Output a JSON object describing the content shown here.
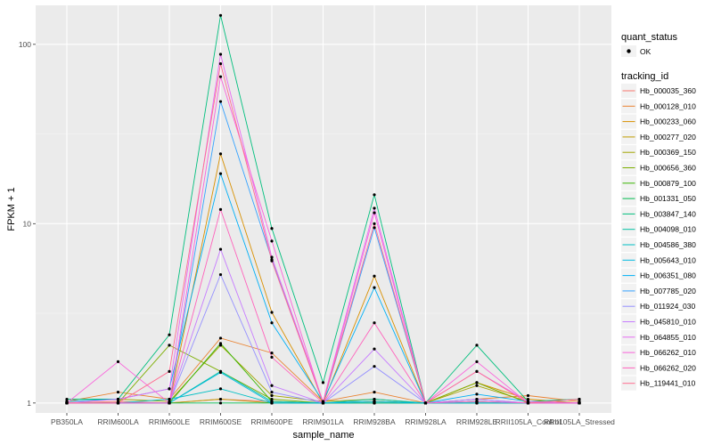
{
  "chart_data": {
    "type": "line",
    "xlabel": "sample_name",
    "ylabel": "FPKM + 1",
    "y_scale": "log10",
    "ylim": [
      0.88,
      165
    ],
    "y_ticks": [
      1,
      10,
      100
    ],
    "y_tick_labels": [
      "1",
      "10",
      "100"
    ],
    "grid": true,
    "legend_position": "right",
    "categories": [
      "PB350LA",
      "RRIM600LA",
      "RRIM600LE",
      "RRIM600SE",
      "RRIM600PE",
      "RRIM901LA",
      "RRIM928BA",
      "RRIM928LA",
      "RRIM928LE",
      "RRII105LA_Control",
      "RRII105LA_Stressed"
    ],
    "shape_legend": {
      "title": "quant_status",
      "entries": [
        "OK"
      ]
    },
    "color_legend_title": "tracking_id",
    "series": [
      {
        "name": "Hb_000035_360",
        "color": "#F8766D",
        "values": [
          1.0,
          1.02,
          1.0,
          1.05,
          1.02,
          1.0,
          1.02,
          1.0,
          1.02,
          1.0,
          1.0
        ]
      },
      {
        "name": "Hb_000128_010",
        "color": "#EA8331",
        "values": [
          1.02,
          1.15,
          1.05,
          2.3,
          1.9,
          1.02,
          1.15,
          1.0,
          1.05,
          1.1,
          1.02
        ]
      },
      {
        "name": "Hb_000233_060",
        "color": "#D89000",
        "values": [
          1.0,
          1.0,
          1.0,
          24.5,
          3.2,
          1.0,
          5.1,
          1.0,
          1.3,
          1.05,
          1.0
        ]
      },
      {
        "name": "Hb_000277_020",
        "color": "#C09B00",
        "values": [
          1.0,
          1.0,
          1.0,
          1.05,
          1.0,
          1.0,
          1.0,
          1.0,
          1.0,
          1.0,
          1.0
        ]
      },
      {
        "name": "Hb_000369_150",
        "color": "#A3A500",
        "values": [
          1.02,
          1.05,
          1.02,
          2.1,
          1.1,
          1.02,
          1.05,
          1.0,
          1.25,
          1.02,
          1.0
        ]
      },
      {
        "name": "Hb_000656_360",
        "color": "#7CAE00",
        "values": [
          1.0,
          1.0,
          2.1,
          1.5,
          1.05,
          1.0,
          1.0,
          1.0,
          1.3,
          1.0,
          1.0
        ]
      },
      {
        "name": "Hb_000879_100",
        "color": "#39B600",
        "values": [
          1.0,
          1.0,
          1.0,
          2.15,
          1.02,
          1.0,
          1.02,
          1.0,
          1.02,
          1.0,
          1.0
        ]
      },
      {
        "name": "Hb_001331_050",
        "color": "#00BB4E",
        "values": [
          1.0,
          1.0,
          1.0,
          1.0,
          1.0,
          1.0,
          1.0,
          1.0,
          1.0,
          1.0,
          1.0
        ]
      },
      {
        "name": "Hb_003847_140",
        "color": "#00BF7D",
        "values": [
          1.05,
          1.05,
          2.4,
          145,
          9.4,
          1.3,
          14.5,
          1.0,
          2.1,
          1.02,
          1.05
        ]
      },
      {
        "name": "Hb_004098_010",
        "color": "#00C1A3",
        "values": [
          1.0,
          1.0,
          1.0,
          1.5,
          1.02,
          1.0,
          1.05,
          1.0,
          1.02,
          1.0,
          1.0
        ]
      },
      {
        "name": "Hb_004586_380",
        "color": "#00BFC4",
        "values": [
          1.0,
          1.0,
          1.05,
          1.2,
          1.0,
          1.0,
          1.0,
          1.0,
          1.0,
          1.0,
          1.0
        ]
      },
      {
        "name": "Hb_005643_010",
        "color": "#00BAE0",
        "values": [
          1.0,
          1.0,
          1.0,
          1.48,
          1.0,
          1.0,
          1.02,
          1.0,
          1.0,
          1.0,
          1.0
        ]
      },
      {
        "name": "Hb_006351_080",
        "color": "#00B0F6",
        "values": [
          1.02,
          1.05,
          1.2,
          19,
          2.8,
          1.02,
          4.4,
          1.0,
          1.12,
          1.02,
          1.0
        ]
      },
      {
        "name": "Hb_007785_020",
        "color": "#35A2FF",
        "values": [
          1.0,
          1.0,
          1.0,
          48,
          6.3,
          1.0,
          9.5,
          1.0,
          1.05,
          1.0,
          1.0
        ]
      },
      {
        "name": "Hb_011924_030",
        "color": "#9590FF",
        "values": [
          1.0,
          1.0,
          1.0,
          5.2,
          1.15,
          1.0,
          1.6,
          1.0,
          1.02,
          1.0,
          1.0
        ]
      },
      {
        "name": "Hb_045810_010",
        "color": "#C77CFF",
        "values": [
          1.0,
          1.0,
          1.0,
          7.2,
          1.25,
          1.0,
          2.0,
          1.0,
          1.05,
          1.0,
          1.0
        ]
      },
      {
        "name": "Hb_064855_010",
        "color": "#E76BF3",
        "values": [
          1.0,
          1.05,
          1.2,
          88,
          6.5,
          1.02,
          12.2,
          1.0,
          1.5,
          1.02,
          1.0
        ]
      },
      {
        "name": "Hb_066262_010",
        "color": "#FA62DB",
        "values": [
          1.0,
          1.7,
          1.0,
          66,
          8.0,
          1.0,
          11.5,
          1.0,
          1.7,
          1.0,
          1.0
        ]
      },
      {
        "name": "Hb_066262_020",
        "color": "#FF62BC",
        "values": [
          1.0,
          1.0,
          1.0,
          12,
          1.8,
          1.0,
          2.8,
          1.0,
          1.02,
          1.0,
          1.0
        ]
      },
      {
        "name": "Hb_119441_010",
        "color": "#FF6C91",
        "values": [
          1.0,
          1.0,
          1.5,
          78,
          6.2,
          1.0,
          10.0,
          1.0,
          1.5,
          1.0,
          1.05
        ]
      }
    ]
  }
}
